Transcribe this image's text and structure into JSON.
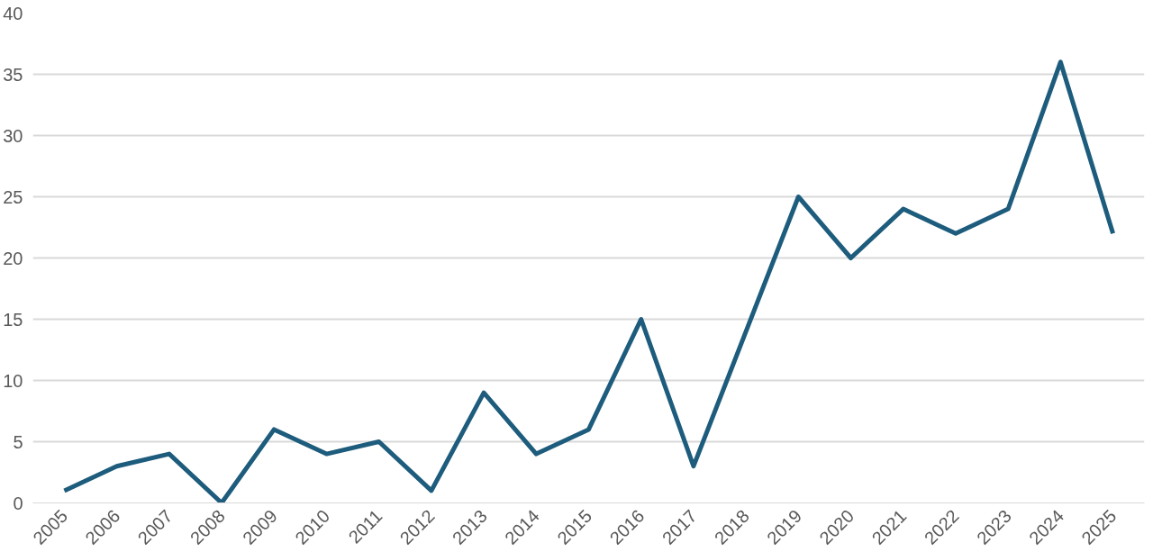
{
  "chart_data": {
    "type": "line",
    "categories": [
      "2005",
      "2006",
      "2007",
      "2008",
      "2009",
      "2010",
      "2011",
      "2012",
      "2013",
      "2014",
      "2015",
      "2016",
      "2017",
      "2018",
      "2019",
      "2020",
      "2021",
      "2022",
      "2023",
      "2024",
      "2025"
    ],
    "series": [
      {
        "color": "#1d5c7c",
        "values": [
          1,
          3,
          4,
          0,
          6,
          4,
          5,
          1,
          9,
          4,
          6,
          15,
          3,
          14,
          25,
          20,
          24,
          22,
          24,
          36,
          22
        ]
      }
    ],
    "ylim": [
      0,
      40
    ],
    "yticks": [
      0,
      5,
      10,
      15,
      20,
      25,
      30,
      35,
      40
    ],
    "grid": "y",
    "marker": "none",
    "line_style": "solid"
  }
}
